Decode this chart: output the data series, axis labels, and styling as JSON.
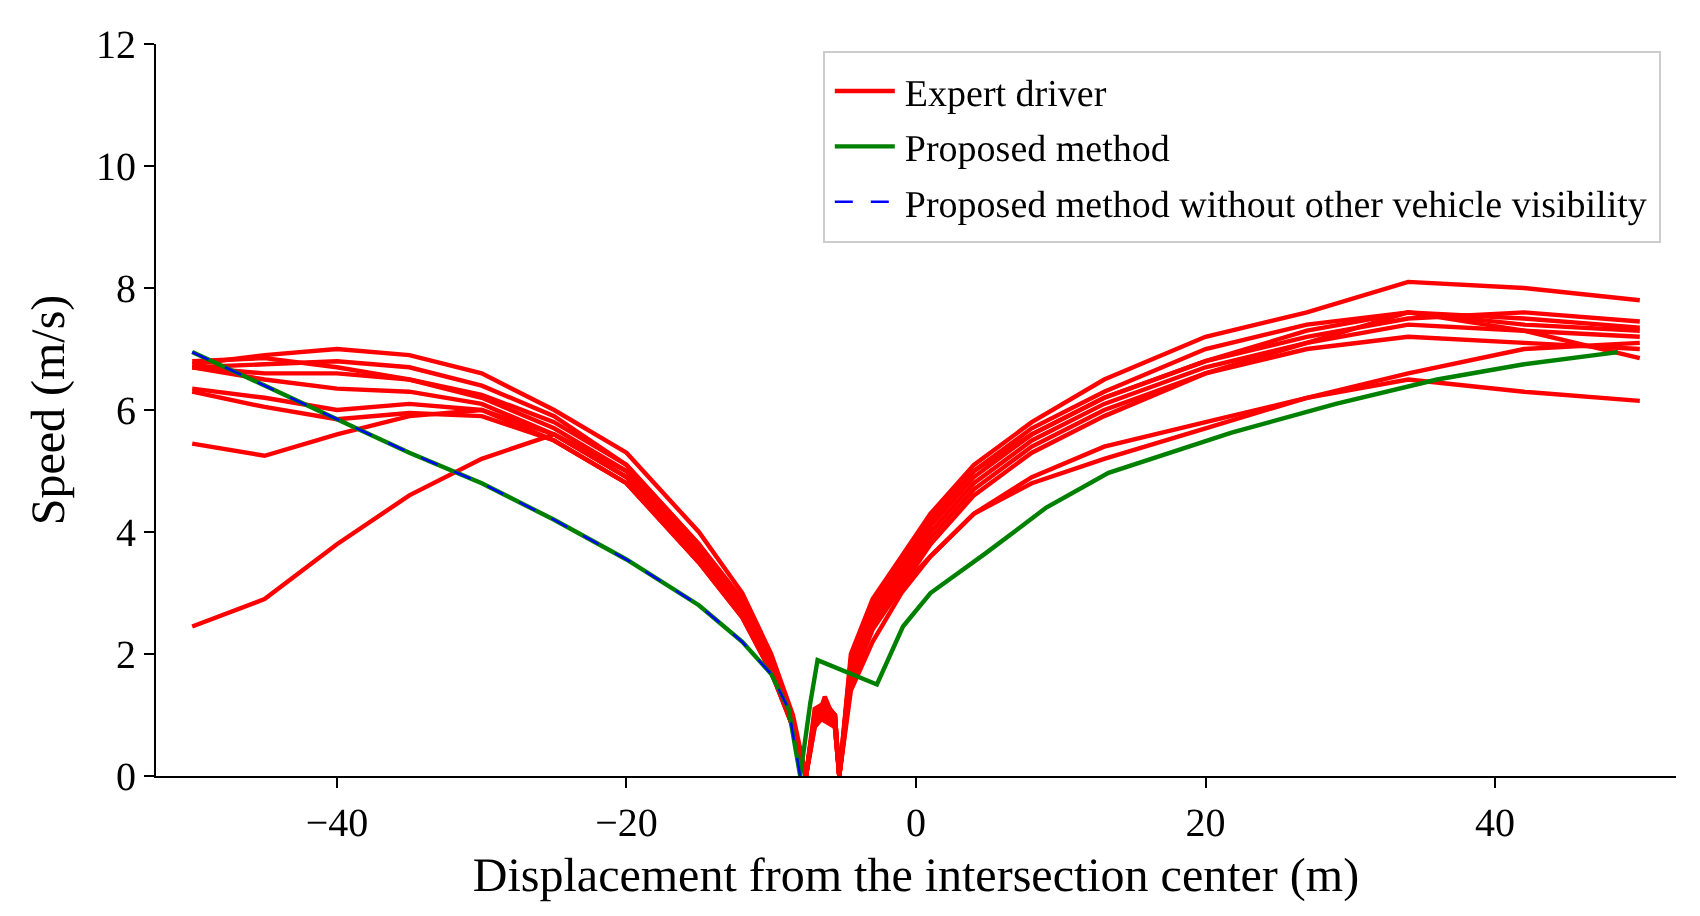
{
  "chart_data": {
    "type": "line",
    "xlabel": "Displacement from the intersection center (m)",
    "ylabel": "Speed (m/s)",
    "xlim": [
      -52.5,
      52.5
    ],
    "ylim": [
      0,
      12
    ],
    "xticks": [
      {
        "value": -40,
        "label": "−40"
      },
      {
        "value": -20,
        "label": "−20"
      },
      0,
      20,
      40
    ],
    "yticks": [
      0,
      2,
      4,
      6,
      8,
      10,
      12
    ],
    "legend": "top right",
    "series": [
      {
        "name": "Expert driver",
        "color": "#ff0000",
        "x": [
          -50,
          -45,
          -40,
          -35,
          -30,
          -25,
          -20,
          -15,
          -12,
          -10,
          -8.5,
          -7.6,
          -7,
          -6.3,
          -5.6,
          -5.3,
          -4.5,
          -3,
          -1,
          1,
          4,
          8,
          13,
          20,
          27,
          34,
          42,
          50
        ],
        "values": [
          6.75,
          6.9,
          7.0,
          6.9,
          6.6,
          6.0,
          5.3,
          4.0,
          3.0,
          2.0,
          1.0,
          0,
          1.0,
          1.2,
          1.0,
          0,
          2.0,
          2.9,
          3.6,
          4.3,
          5.1,
          5.8,
          6.5,
          7.2,
          7.6,
          8.1,
          8.0,
          7.8
        ]
      },
      {
        "color": "#ff0000",
        "x": [
          -50,
          -45,
          -40,
          -35,
          -30,
          -25,
          -20,
          -15,
          -12,
          -10,
          -8.5,
          -7.6,
          -7,
          -6.3,
          -5.6,
          -5.3,
          -4.5,
          -3,
          -1,
          1,
          4,
          8,
          13,
          20,
          27,
          34,
          42,
          50
        ],
        "values": [
          6.7,
          6.75,
          6.8,
          6.7,
          6.4,
          5.9,
          5.1,
          3.8,
          2.9,
          1.9,
          0.9,
          0,
          0.9,
          1.1,
          1.0,
          0,
          1.8,
          2.8,
          3.5,
          4.2,
          5.0,
          5.7,
          6.3,
          7.0,
          7.4,
          7.6,
          7.5,
          7.35
        ]
      },
      {
        "color": "#ff0000",
        "x": [
          -50,
          -45,
          -40,
          -35,
          -30,
          -25,
          -20,
          -15,
          -12,
          -10,
          -8.5,
          -7.6,
          -7,
          -6.3,
          -5.6,
          -5.3,
          -4.5,
          -3,
          -1,
          1,
          4,
          8,
          13,
          20,
          27,
          34,
          42,
          50
        ],
        "values": [
          6.7,
          6.6,
          6.6,
          6.5,
          6.2,
          5.7,
          5.0,
          3.7,
          2.8,
          1.8,
          0.9,
          0,
          0.8,
          1.3,
          0.9,
          0,
          1.9,
          2.7,
          3.4,
          4.1,
          4.9,
          5.6,
          6.2,
          6.8,
          7.3,
          7.6,
          7.4,
          7.3
        ]
      },
      {
        "color": "#ff0000",
        "x": [
          -50,
          -45,
          -40,
          -35,
          -30,
          -25,
          -20,
          -15,
          -12,
          -10,
          -8.5,
          -7.6,
          -7,
          -6.3,
          -5.6,
          -5.3,
          -4.5,
          -3,
          -1,
          1,
          4,
          8,
          13,
          20,
          27,
          34,
          42,
          50
        ],
        "values": [
          6.35,
          6.2,
          6.0,
          6.1,
          6.0,
          5.6,
          4.9,
          3.6,
          2.7,
          1.8,
          0.8,
          0,
          1.0,
          1.1,
          1.0,
          0,
          1.7,
          2.6,
          3.3,
          4.0,
          4.8,
          5.5,
          6.1,
          6.7,
          7.1,
          7.4,
          7.3,
          7.2
        ]
      },
      {
        "color": "#ff0000",
        "x": [
          -50,
          -45,
          -40,
          -35,
          -30,
          -25,
          -20,
          -15,
          -12,
          -10,
          -8.5,
          -7.6,
          -7,
          -6.3,
          -5.6,
          -5.3,
          -4.5,
          -3,
          -1,
          1,
          4,
          8,
          13,
          20,
          27,
          34,
          42,
          50
        ],
        "values": [
          6.3,
          6.05,
          5.85,
          5.95,
          5.9,
          5.5,
          4.8,
          3.5,
          2.6,
          1.7,
          0.8,
          0,
          0.9,
          1.0,
          0.8,
          0,
          1.6,
          2.5,
          3.2,
          3.9,
          4.7,
          5.4,
          6.0,
          6.6,
          7.0,
          7.2,
          7.1,
          7.0
        ]
      },
      {
        "color": "#ff0000",
        "x": [
          -50,
          -45,
          -40,
          -35,
          -30,
          -25,
          -20,
          -15,
          -12,
          -10,
          -8.5,
          -7.6,
          -7,
          -6.3,
          -5.6,
          -5.3,
          -4.5,
          -3,
          -1,
          1,
          4,
          8,
          13,
          20,
          27,
          34,
          42,
          50
        ],
        "values": [
          5.45,
          5.25,
          5.6,
          5.9,
          6.0,
          5.5,
          4.8,
          3.5,
          2.6,
          1.7,
          0.8,
          0,
          0.9,
          1.1,
          0.9,
          0,
          1.5,
          2.4,
          3.1,
          3.8,
          4.6,
          5.3,
          5.9,
          6.6,
          7.1,
          7.6,
          7.3,
          6.85
        ]
      },
      {
        "color": "#ff0000",
        "x": [
          -50,
          -45,
          -40,
          -35,
          -30,
          -25,
          -20,
          -15,
          -12,
          -10,
          -8.5,
          -7.6,
          -7,
          -6.3,
          -5.6,
          -5.3,
          -4.5,
          -3,
          -1,
          1,
          4,
          8,
          13,
          20,
          27,
          34,
          42,
          50
        ],
        "values": [
          2.45,
          2.9,
          3.8,
          4.6,
          5.2,
          5.6,
          5.0,
          3.7,
          2.7,
          1.8,
          0.8,
          0,
          0.8,
          1.0,
          0.8,
          0,
          1.4,
          2.2,
          3.0,
          3.6,
          4.3,
          4.8,
          5.2,
          5.7,
          6.2,
          6.5,
          6.3,
          6.15
        ]
      },
      {
        "color": "#ff0000",
        "x": [
          -50,
          -45,
          -40,
          -35,
          -30,
          -25,
          -20,
          -15,
          -12,
          -10,
          -8.5,
          -7.6,
          -7,
          -6.3,
          -5.6,
          -5.3,
          -4.5,
          -3,
          -1,
          1,
          4,
          8,
          13,
          20,
          27,
          34,
          42,
          50
        ],
        "values": [
          6.8,
          6.85,
          6.7,
          6.5,
          6.25,
          5.8,
          5.1,
          3.8,
          2.8,
          1.8,
          0.9,
          0,
          1.1,
          1.2,
          1.0,
          0,
          1.9,
          2.8,
          3.5,
          4.2,
          5.0,
          5.6,
          6.2,
          6.8,
          7.2,
          7.5,
          7.6,
          7.45
        ]
      },
      {
        "color": "#ff0000",
        "x": [
          -50,
          -45,
          -40,
          -35,
          -30,
          -25,
          -20,
          -15,
          -12,
          -10,
          -8.5,
          -7.6,
          -7,
          -6.3,
          -5.6,
          -5.3,
          -4.5,
          -3,
          -1,
          1,
          4,
          8,
          13,
          20,
          27,
          34,
          42,
          50
        ],
        "values": [
          6.7,
          6.5,
          6.35,
          6.3,
          6.1,
          5.6,
          4.9,
          3.6,
          2.7,
          1.8,
          0.8,
          0,
          1.0,
          0.9,
          0.8,
          0,
          1.6,
          2.5,
          3.1,
          3.6,
          4.3,
          4.9,
          5.4,
          5.8,
          6.2,
          6.6,
          7.0,
          7.1
        ]
      },
      {
        "name": "Proposed method",
        "color": "#008000",
        "x": [
          -50,
          -45,
          -40,
          -35,
          -30,
          -25,
          -20,
          -15,
          -12,
          -10,
          -8.8,
          -8,
          -7.3,
          -6.8,
          -2.7,
          -0.9,
          1,
          4.8,
          9,
          13.3,
          21.8,
          29,
          36,
          42,
          48.5
        ],
        "values": [
          6.95,
          6.4,
          5.85,
          5.3,
          4.8,
          4.2,
          3.55,
          2.8,
          2.2,
          1.67,
          1.1,
          0,
          1.2,
          1.9,
          1.5,
          2.45,
          3.0,
          3.65,
          4.4,
          4.97,
          5.63,
          6.1,
          6.5,
          6.75,
          6.95
        ]
      },
      {
        "name": "Proposed method without other vehicle visibility",
        "color": "#0000ff",
        "line_style": "dashed",
        "x": [
          -50,
          -45,
          -40,
          -35,
          -30,
          -25,
          -20,
          -15,
          -12,
          -10,
          -8.8,
          -8
        ],
        "values": [
          6.95,
          6.4,
          5.85,
          5.3,
          4.8,
          4.2,
          3.55,
          2.8,
          2.2,
          1.67,
          1.1,
          0
        ]
      }
    ]
  }
}
